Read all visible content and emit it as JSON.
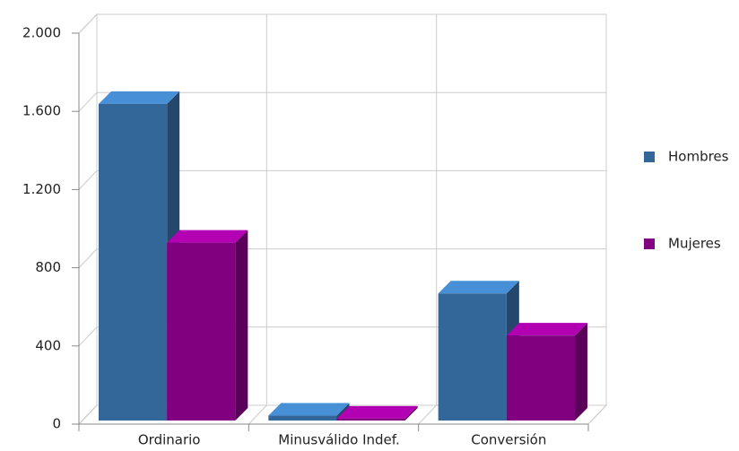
{
  "chart_data": {
    "type": "bar3d",
    "categories": [
      "Ordinario",
      "Minusválido Indef.",
      "Conversión"
    ],
    "series": [
      {
        "name": "Hombres",
        "color": "#336699",
        "values": [
          1620,
          25,
          650
        ]
      },
      {
        "name": "Mujeres",
        "color": "#800080",
        "values": [
          910,
          10,
          435
        ]
      }
    ],
    "ylim": [
      0,
      2000
    ],
    "yticks": [
      0,
      400,
      800,
      {
        "value": 1200,
        "label": "1.200"
      },
      {
        "value": 1600,
        "label": "1.600"
      },
      {
        "value": 2000,
        "label": "2.000"
      }
    ],
    "grid": true,
    "legend": "right"
  }
}
